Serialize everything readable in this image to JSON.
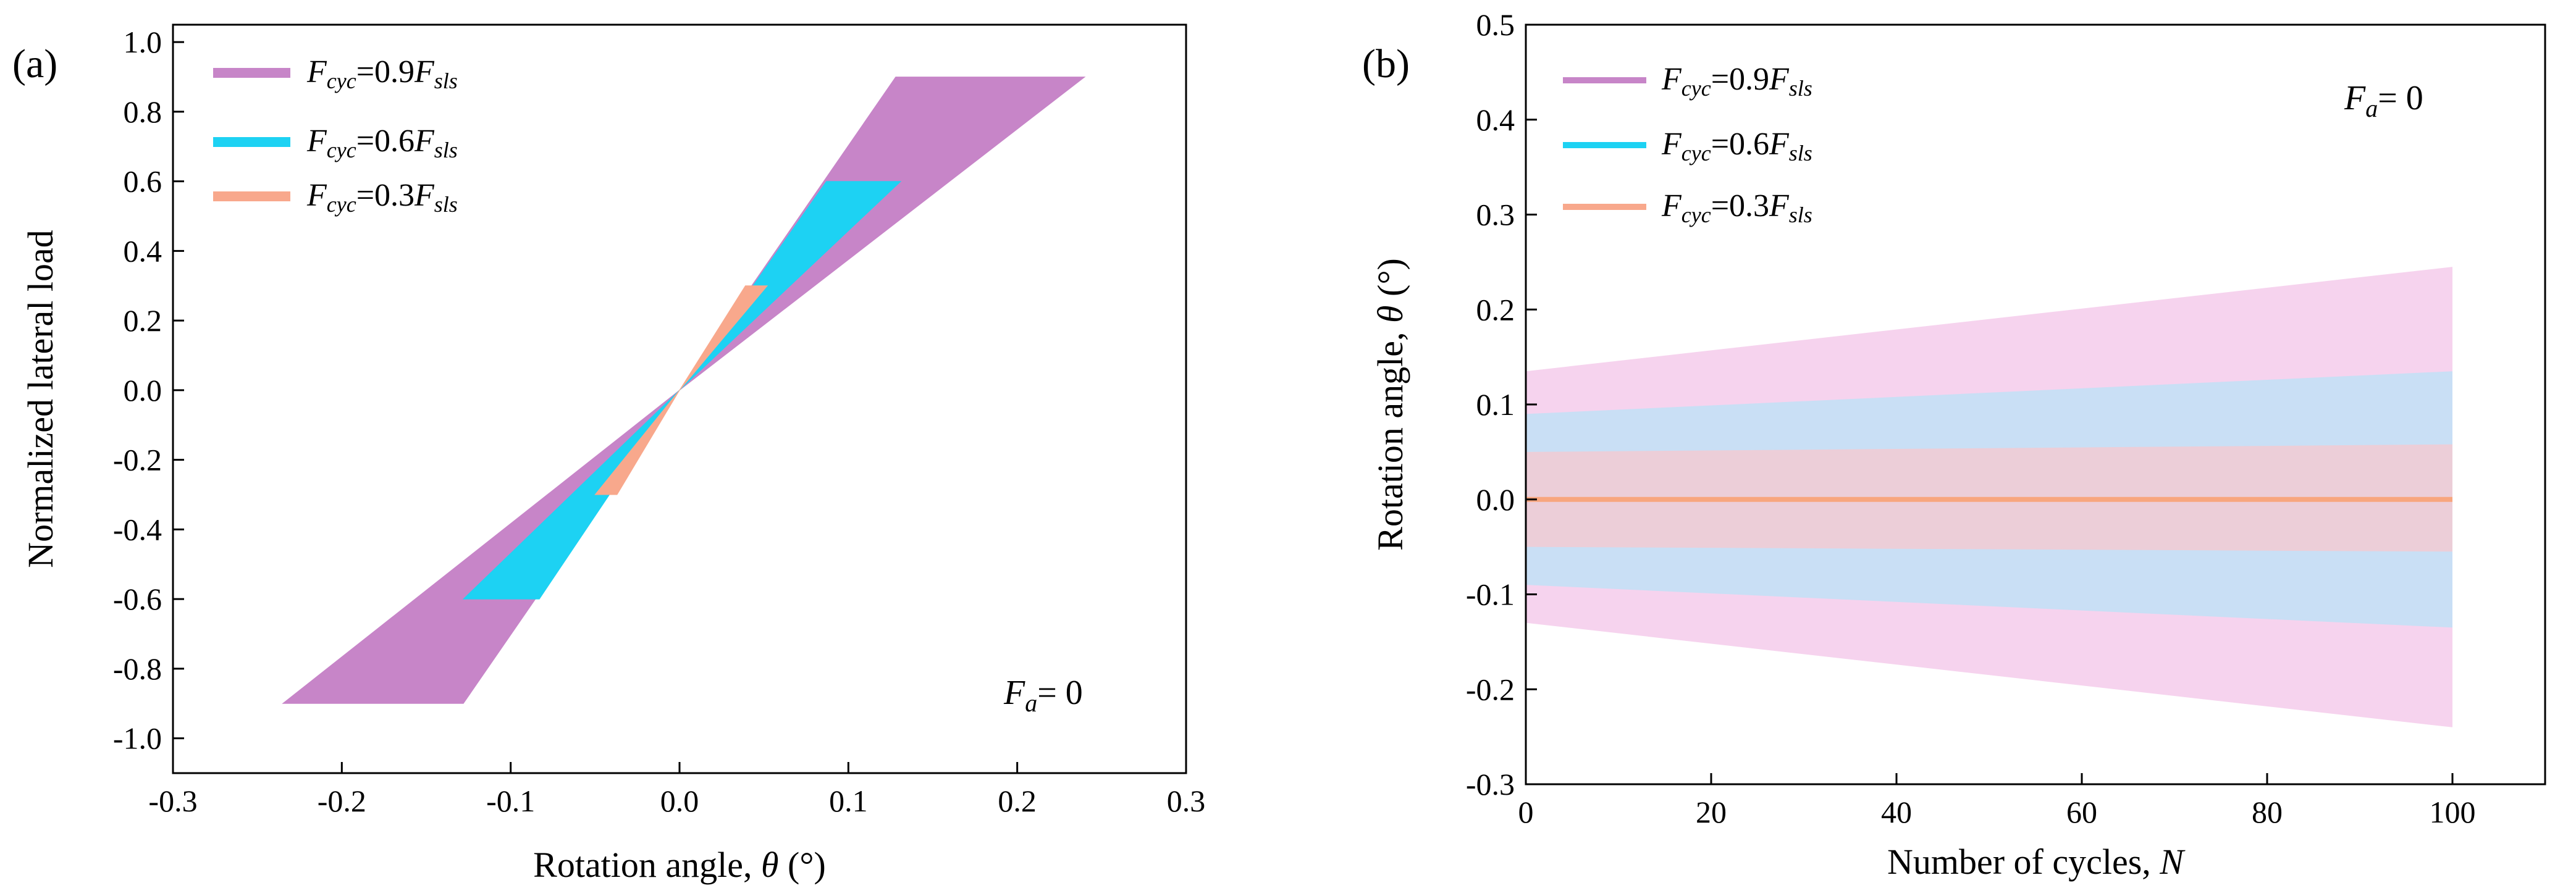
{
  "chart_data": [
    {
      "panel_label": "(a)",
      "type": "area",
      "title": "",
      "xlabel_text": "Rotation angle, ",
      "xlabel_symbol": "θ",
      "xlabel_unit": " (°)",
      "ylabel": "Normalized lateral load",
      "xlim": [
        -0.3,
        0.3
      ],
      "ylim": [
        -1.1,
        1.05
      ],
      "x_ticks": [
        -0.3,
        -0.2,
        -0.1,
        0.0,
        0.1,
        0.2,
        0.3
      ],
      "x_tick_labels": [
        "-0.3",
        "-0.2",
        "-0.1",
        "0.0",
        "0.1",
        "0.2",
        "0.3"
      ],
      "y_ticks": [
        -1.0,
        -0.8,
        -0.6,
        -0.4,
        -0.2,
        0.0,
        0.2,
        0.4,
        0.6,
        0.8,
        1.0
      ],
      "y_tick_labels": [
        "-1.0",
        "-0.8",
        "-0.6",
        "-0.4",
        "-0.2",
        "0.0",
        "0.2",
        "0.4",
        "0.6",
        "0.8",
        "1.0"
      ],
      "annotation": {
        "symbol": "F",
        "sub": "a",
        "rest": "= 0"
      },
      "legend_position": "top-left",
      "series": [
        {
          "name": "Fcyc=0.9Fsls",
          "legend": {
            "a": "F",
            "b": "cyc",
            "c": "=0.9",
            "d": "F",
            "e": "sls"
          },
          "color": "#C785C8",
          "polygon": [
            [
              -0.235,
              -0.9
            ],
            [
              -0.128,
              -0.9
            ],
            [
              0.0,
              0.0
            ],
            [
              0.128,
              0.9
            ],
            [
              0.24,
              0.9
            ],
            [
              0.0,
              0.0
            ]
          ]
        },
        {
          "name": "Fcyc=0.6Fsls",
          "legend": {
            "a": "F",
            "b": "cyc",
            "c": "=0.6",
            "d": "F",
            "e": "sls"
          },
          "color": "#1DD2F3",
          "polygon": [
            [
              -0.128,
              -0.6
            ],
            [
              -0.083,
              -0.6
            ],
            [
              0.0,
              0.0
            ],
            [
              0.087,
              0.6
            ],
            [
              0.131,
              0.6
            ],
            [
              0.0,
              0.0
            ]
          ]
        },
        {
          "name": "Fcyc=0.3Fsls",
          "legend": {
            "a": "F",
            "b": "cyc",
            "c": "=0.3",
            "d": "F",
            "e": "sls"
          },
          "color": "#F8A88C",
          "polygon": [
            [
              -0.05,
              -0.3
            ],
            [
              -0.037,
              -0.3
            ],
            [
              0.0,
              0.0
            ],
            [
              0.039,
              0.3
            ],
            [
              0.052,
              0.3
            ],
            [
              0.0,
              0.0
            ]
          ]
        }
      ]
    },
    {
      "panel_label": "(b)",
      "type": "area",
      "title": "",
      "xlabel_text": "Number of cycles, ",
      "xlabel_symbol": "N",
      "ylabel_text": "Rotation angle, ",
      "ylabel_symbol": "θ",
      "ylabel_unit": " (°)",
      "xlim": [
        0,
        110
      ],
      "ylim": [
        -0.3,
        0.5
      ],
      "x_ticks": [
        0,
        20,
        40,
        60,
        80,
        100
      ],
      "x_tick_labels": [
        "0",
        "20",
        "40",
        "60",
        "80",
        "100"
      ],
      "y_ticks": [
        -0.3,
        -0.2,
        -0.1,
        0.0,
        0.1,
        0.2,
        0.3,
        0.4,
        0.5
      ],
      "y_tick_labels": [
        "-0.3",
        "-0.2",
        "-0.1",
        "0.0",
        "0.1",
        "0.2",
        "0.3",
        "0.4",
        "0.5"
      ],
      "annotation": {
        "symbol": "F",
        "sub": "a",
        "rest": "= 0"
      },
      "legend_position": "top-left",
      "center_line": {
        "y": 0.0,
        "x_range": [
          0,
          100
        ],
        "color": "#F8A67E"
      },
      "series": [
        {
          "name": "Fcyc=0.9Fsls",
          "legend": {
            "a": "F",
            "b": "cyc",
            "c": "=0.9",
            "d": "F",
            "e": "sls"
          },
          "color": "#C785C8",
          "band_color": "#F6D3EE",
          "x": [
            0,
            100
          ],
          "upper": [
            0.135,
            0.245
          ],
          "lower": [
            -0.13,
            -0.24
          ]
        },
        {
          "name": "Fcyc=0.6Fsls",
          "legend": {
            "a": "F",
            "b": "cyc",
            "c": "=0.6",
            "d": "F",
            "e": "sls"
          },
          "color": "#1DD2F3",
          "band_color": "#C9DFF5",
          "x": [
            0,
            100
          ],
          "upper": [
            0.09,
            0.135
          ],
          "lower": [
            -0.09,
            -0.135
          ]
        },
        {
          "name": "Fcyc=0.3Fsls",
          "legend": {
            "a": "F",
            "b": "cyc",
            "c": "=0.3",
            "d": "F",
            "e": "sls"
          },
          "color": "#F8A88C",
          "band_color": "#ECCED8",
          "x": [
            0,
            100
          ],
          "upper": [
            0.05,
            0.058
          ],
          "lower": [
            -0.05,
            -0.055
          ]
        }
      ]
    }
  ]
}
